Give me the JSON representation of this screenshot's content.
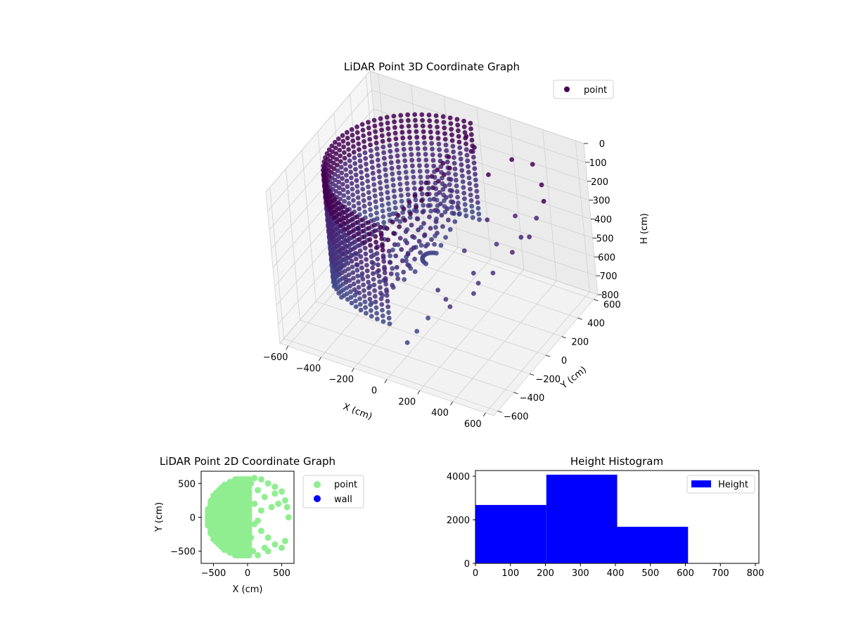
{
  "chart_data": [
    {
      "type": "scatter",
      "projection": "3d",
      "title": "LiDAR Point 3D Coordinate Graph",
      "xlabel": "X (cm)",
      "ylabel": "Y (cm)",
      "zlabel": "H (cm)",
      "xlim": [
        -650,
        650
      ],
      "ylim": [
        -650,
        650
      ],
      "zlim": [
        0,
        800
      ],
      "z_inverted": true,
      "xticks": [
        -600,
        -400,
        -200,
        0,
        200,
        400,
        600
      ],
      "yticks": [
        -600,
        -400,
        -200,
        0,
        200,
        400,
        600
      ],
      "zticks": [
        0,
        100,
        200,
        300,
        400,
        500,
        600,
        700,
        800
      ],
      "grid": true,
      "legend": {
        "placement": "top-right",
        "entries": [
          "point"
        ]
      },
      "colormap": "viridis-dark",
      "series": [
        {
          "name": "point",
          "shape": "half-cylinder wall on the negative-X side plus scattered points on the positive-X side",
          "radius": 560,
          "height_range": [
            0,
            800
          ],
          "scattered_points": [
            {
              "x": 0,
              "y": 500,
              "h": 80
            },
            {
              "x": 50,
              "y": 450,
              "h": 120
            },
            {
              "x": 100,
              "y": 400,
              "h": 60
            },
            {
              "x": 200,
              "y": 350,
              "h": 150
            },
            {
              "x": 300,
              "y": 450,
              "h": 90
            },
            {
              "x": 400,
              "y": 500,
              "h": 110
            },
            {
              "x": 500,
              "y": 400,
              "h": 140
            },
            {
              "x": 560,
              "y": 300,
              "h": 160
            },
            {
              "x": 560,
              "y": 200,
              "h": 200
            },
            {
              "x": 560,
              "y": 100,
              "h": 250
            },
            {
              "x": 500,
              "y": 0,
              "h": 300
            },
            {
              "x": 450,
              "y": -150,
              "h": 350
            },
            {
              "x": 400,
              "y": -300,
              "h": 400
            },
            {
              "x": 300,
              "y": -400,
              "h": 450
            },
            {
              "x": 200,
              "y": -480,
              "h": 500
            },
            {
              "x": 150,
              "y": -530,
              "h": 560
            },
            {
              "x": 100,
              "y": -560,
              "h": 620
            },
            {
              "x": 250,
              "y": 200,
              "h": 300
            },
            {
              "x": 350,
              "y": 100,
              "h": 350
            },
            {
              "x": 200,
              "y": 0,
              "h": 380
            },
            {
              "x": 300,
              "y": -100,
              "h": 420
            },
            {
              "x": 100,
              "y": 150,
              "h": 250
            },
            {
              "x": 150,
              "y": -250,
              "h": 480
            },
            {
              "x": 400,
              "y": 250,
              "h": 260
            },
            {
              "x": 480,
              "y": 150,
              "h": 300
            },
            {
              "x": 380,
              "y": -200,
              "h": 400
            },
            {
              "x": 250,
              "y": -350,
              "h": 450
            }
          ]
        }
      ]
    },
    {
      "type": "scatter",
      "title": "LiDAR Point 2D Coordinate Graph",
      "xlabel": "X (cm)",
      "ylabel": "Y (cm)",
      "xlim": [
        -680,
        680
      ],
      "ylim": [
        -680,
        680
      ],
      "xticks": [
        -500,
        0,
        500
      ],
      "yticks": [
        -500,
        0,
        500
      ],
      "legend": {
        "placement": "outside-right",
        "entries": [
          "point",
          "wall"
        ]
      },
      "series": [
        {
          "name": "point",
          "color": "#90ee90",
          "shape": "filled half-disc x<=0, radius 600, with ragged points for x>0"
        },
        {
          "name": "wall",
          "color": "#0000ff",
          "points": []
        }
      ],
      "right_points": [
        {
          "x": 100,
          "y": 580
        },
        {
          "x": 200,
          "y": 560
        },
        {
          "x": 300,
          "y": 500
        },
        {
          "x": 400,
          "y": 450
        },
        {
          "x": 500,
          "y": 380
        },
        {
          "x": 550,
          "y": 250
        },
        {
          "x": 580,
          "y": 150
        },
        {
          "x": 600,
          "y": 0
        },
        {
          "x": 450,
          "y": 200
        },
        {
          "x": 350,
          "y": 150
        },
        {
          "x": 250,
          "y": 300
        },
        {
          "x": 150,
          "y": 400
        },
        {
          "x": 100,
          "y": 200
        },
        {
          "x": 200,
          "y": 100
        },
        {
          "x": 100,
          "y": -100
        },
        {
          "x": 200,
          "y": -200
        },
        {
          "x": 300,
          "y": -300
        },
        {
          "x": 400,
          "y": -400
        },
        {
          "x": 500,
          "y": -450
        },
        {
          "x": 550,
          "y": -350
        },
        {
          "x": 300,
          "y": -500
        },
        {
          "x": 150,
          "y": -560
        },
        {
          "x": 250,
          "y": -450
        },
        {
          "x": 50,
          "y": -300
        },
        {
          "x": 400,
          "y": 350
        },
        {
          "x": 50,
          "y": 500
        },
        {
          "x": 80,
          "y": -500
        },
        {
          "x": 150,
          "y": -50
        }
      ]
    },
    {
      "type": "bar",
      "title": "Height Histogram",
      "xlabel": "",
      "ylabel": "",
      "xlim": [
        0,
        810
      ],
      "ylim": [
        0,
        4260
      ],
      "xticks": [
        0,
        100,
        200,
        300,
        400,
        500,
        600,
        700,
        800
      ],
      "yticks": [
        0,
        2000,
        4000
      ],
      "legend": {
        "placement": "top-right",
        "entries": [
          "Height"
        ]
      },
      "series": [
        {
          "name": "Height",
          "color": "#0000ff",
          "bins": [
            0,
            202.5,
            405,
            607.5,
            810
          ],
          "values": [
            2680,
            4070,
            1680,
            0
          ]
        }
      ]
    }
  ]
}
